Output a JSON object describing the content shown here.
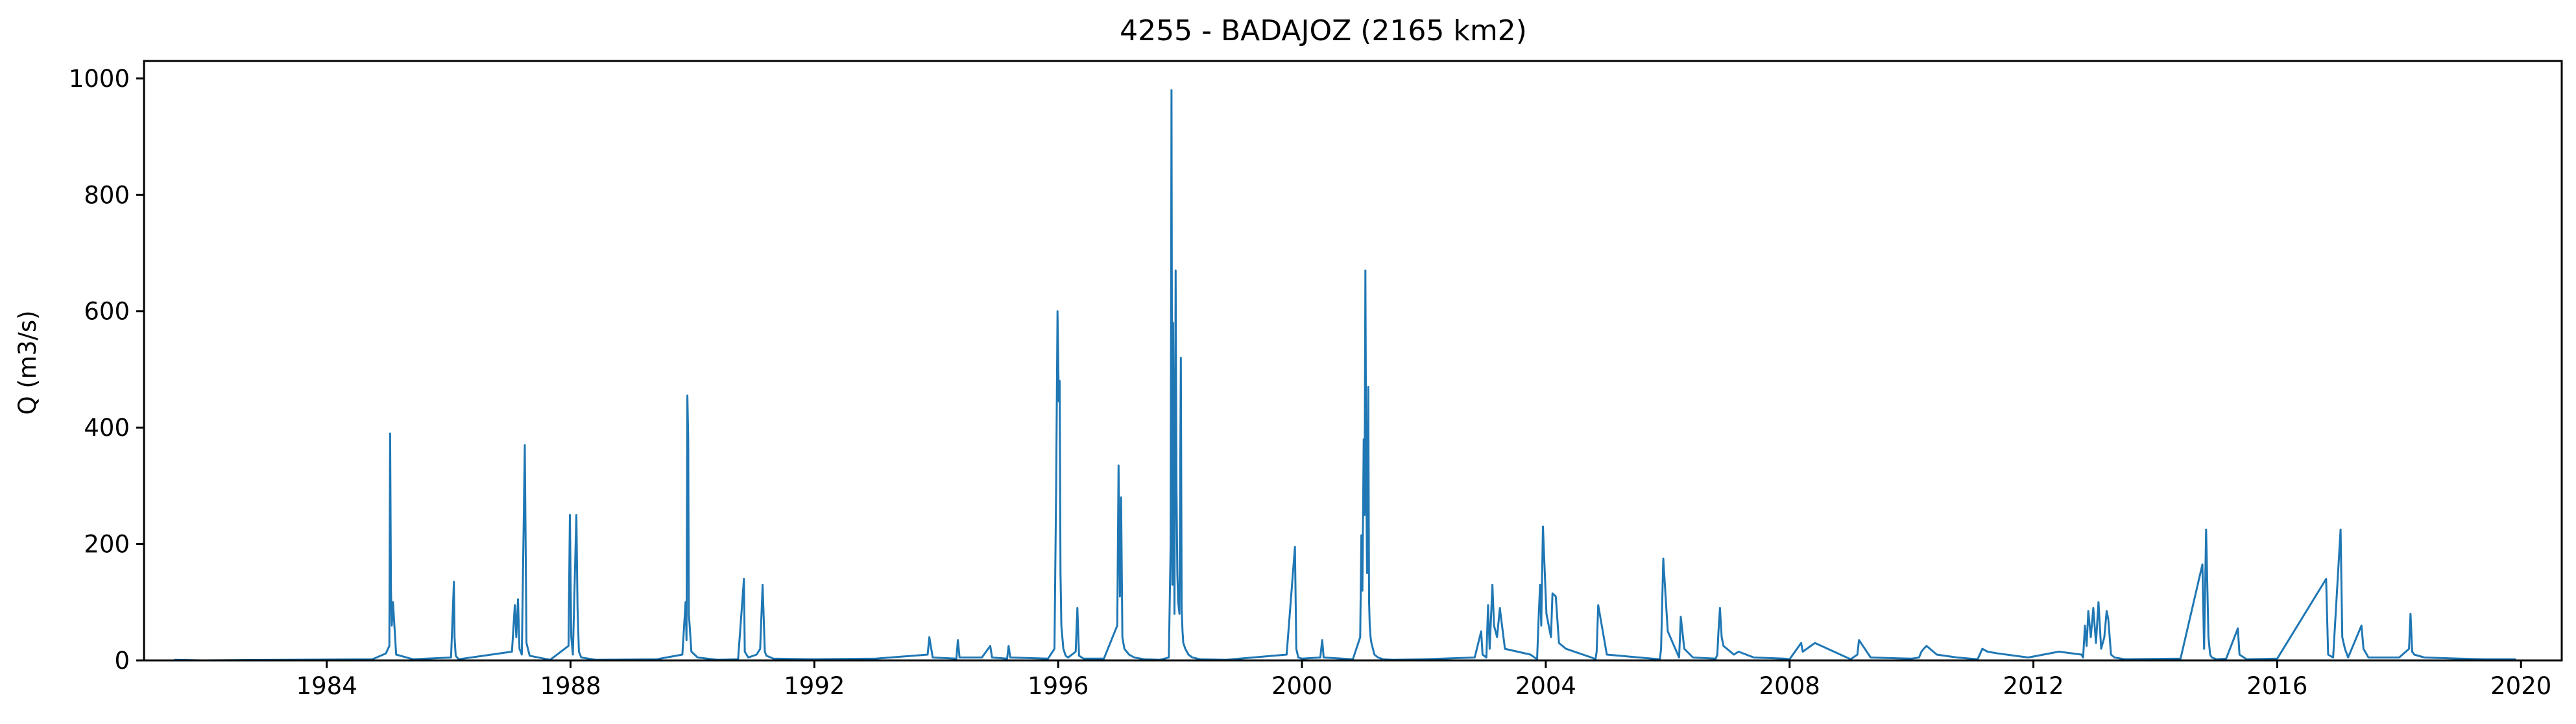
{
  "chart_data": {
    "type": "line",
    "title": "4255 - BADAJOZ (2165 km2)",
    "xlabel": "",
    "ylabel": "Q (m3/s)",
    "xlim": [
      "1981-01-01",
      "2020-09-01"
    ],
    "ylim": [
      0,
      1030
    ],
    "x_ticks": [
      "1984",
      "1988",
      "1992",
      "1996",
      "2000",
      "2004",
      "2008",
      "2012",
      "2016",
      "2020"
    ],
    "y_ticks": [
      0,
      200,
      400,
      600,
      800,
      1000
    ],
    "grid": false,
    "legend": "none",
    "line_color": "#1f77b4",
    "series": [
      {
        "x": [
          "1981-07-01",
          "1981-12-15",
          "1984-10-01",
          "1984-12-20",
          "1985-01-10",
          "1985-01-15",
          "1985-01-20",
          "1985-01-25",
          "1985-02-01",
          "1985-02-20",
          "1985-06-01",
          "1986-01-15",
          "1986-02-01",
          "1986-02-05",
          "1986-02-12",
          "1986-03-01",
          "1987-01-15",
          "1987-02-01",
          "1987-02-10",
          "1987-02-20",
          "1987-03-01",
          "1987-03-15",
          "1987-04-02",
          "1987-04-12",
          "1987-05-01",
          "1987-09-01",
          "1987-12-20",
          "1987-12-28",
          "1988-01-05",
          "1988-01-15",
          "1988-02-05",
          "1988-02-12",
          "1988-02-20",
          "1988-03-05",
          "1988-06-01",
          "1989-06-01",
          "1989-11-01",
          "1989-11-20",
          "1989-11-26",
          "1989-12-01",
          "1989-12-06",
          "1989-12-10",
          "1989-12-25",
          "1990-02-01",
          "1990-06-01",
          "1990-10-01",
          "1990-11-05",
          "1990-11-10",
          "1990-12-01",
          "1991-01-20",
          "1991-02-10",
          "1991-02-25",
          "1991-03-10",
          "1991-03-20",
          "1991-05-01",
          "1992-01-01",
          "1993-01-01",
          "1993-11-10",
          "1993-11-20",
          "1993-12-10",
          "1994-05-01",
          "1994-05-10",
          "1994-05-20",
          "1994-10-01",
          "1994-11-20",
          "1994-12-01",
          "1995-03-01",
          "1995-03-10",
          "1995-03-20",
          "1995-11-01",
          "1995-12-10",
          "1995-12-20",
          "1995-12-28",
          "1996-01-05",
          "1996-01-10",
          "1996-01-15",
          "1996-01-20",
          "1996-02-01",
          "1996-02-15",
          "1996-03-01",
          "1996-04-15",
          "1996-04-25",
          "1996-05-05",
          "1996-06-01",
          "1996-10-01",
          "1996-12-20",
          "1996-12-28",
          "1997-01-05",
          "1997-01-12",
          "1997-01-20",
          "1997-02-01",
          "1997-03-01",
          "1997-04-01",
          "1997-06-01",
          "1997-09-01",
          "1997-10-25",
          "1997-11-05",
          "1997-11-10",
          "1997-11-15",
          "1997-11-20",
          "1997-11-28",
          "1997-12-05",
          "1997-12-10",
          "1997-12-15",
          "1997-12-20",
          "1997-12-28",
          "1998-01-05",
          "1998-01-10",
          "1998-01-15",
          "1998-01-20",
          "1998-02-01",
          "1998-02-20",
          "1998-03-15",
          "1998-05-01",
          "1998-10-01",
          "1999-10-01",
          "1999-11-20",
          "1999-11-28",
          "1999-12-10",
          "2000-01-01",
          "2000-04-20",
          "2000-05-01",
          "2000-05-10",
          "2000-11-01",
          "2000-12-15",
          "2000-12-22",
          "2000-12-28",
          "2001-01-05",
          "2001-01-10",
          "2001-01-15",
          "2001-01-20",
          "2001-01-25",
          "2001-02-01",
          "2001-02-06",
          "2001-02-10",
          "2001-02-15",
          "2001-02-20",
          "2001-03-01",
          "2001-03-10",
          "2001-04-01",
          "2001-05-01",
          "2001-07-01",
          "2002-01-01",
          "2002-11-01",
          "2002-12-10",
          "2002-12-18",
          "2003-01-10",
          "2003-01-20",
          "2003-01-30",
          "2003-02-15",
          "2003-02-25",
          "2003-03-15",
          "2003-04-01",
          "2003-05-01",
          "2003-10-01",
          "2003-11-10",
          "2003-11-20",
          "2003-11-28",
          "2003-12-05",
          "2003-12-15",
          "2004-01-05",
          "2004-02-01",
          "2004-02-10",
          "2004-03-01",
          "2004-03-20",
          "2004-05-01",
          "2004-10-01",
          "2004-10-25",
          "2004-11-01",
          "2004-11-10",
          "2005-01-01",
          "2005-10-01",
          "2005-11-15",
          "2005-11-22",
          "2005-12-05",
          "2006-01-01",
          "2006-03-10",
          "2006-03-20",
          "2006-04-10",
          "2006-06-01",
          "2006-10-15",
          "2006-10-25",
          "2006-11-01",
          "2006-11-10",
          "2006-11-20",
          "2006-12-01",
          "2007-02-01",
          "2007-03-01",
          "2007-06-01",
          "2007-12-01",
          "2008-01-01",
          "2008-03-10",
          "2008-03-20",
          "2008-06-01",
          "2009-01-01",
          "2009-02-10",
          "2009-02-20",
          "2009-05-01",
          "2010-01-01",
          "2010-02-15",
          "2010-03-01",
          "2010-03-15",
          "2010-04-01",
          "2010-06-01",
          "2010-10-01",
          "2011-02-01",
          "2011-03-01",
          "2011-04-01",
          "2011-06-01",
          "2011-12-01",
          "2012-06-01",
          "2012-10-15",
          "2012-10-25",
          "2012-11-05",
          "2012-11-15",
          "2012-11-25",
          "2012-12-10",
          "2012-12-25",
          "2013-01-10",
          "2013-01-25",
          "2013-02-10",
          "2013-03-01",
          "2013-03-15",
          "2013-03-25",
          "2013-04-10",
          "2013-05-01",
          "2013-07-01",
          "2014-06-01",
          "2014-10-10",
          "2014-10-20",
          "2014-11-01",
          "2014-11-15",
          "2014-11-25",
          "2014-12-05",
          "2015-01-01",
          "2015-03-01",
          "2015-05-10",
          "2015-05-20",
          "2015-07-01",
          "2016-01-01",
          "2016-10-20",
          "2016-11-01",
          "2016-12-01",
          "2017-01-15",
          "2017-01-25",
          "2017-02-10",
          "2017-03-01",
          "2017-05-20",
          "2017-06-01",
          "2017-07-01",
          "2018-01-01",
          "2018-03-01",
          "2018-03-10",
          "2018-03-20",
          "2018-04-01",
          "2018-06-01",
          "2019-01-01",
          "2019-06-01",
          "2019-12-01"
        ],
        "y": [
          1,
          0,
          2,
          12,
          25,
          390,
          120,
          60,
          100,
          10,
          2,
          5,
          135,
          40,
          8,
          2,
          15,
          95,
          40,
          105,
          20,
          10,
          370,
          30,
          8,
          1,
          25,
          250,
          40,
          10,
          250,
          90,
          15,
          5,
          1,
          2,
          10,
          100,
          35,
          455,
          380,
          80,
          15,
          5,
          1,
          2,
          140,
          15,
          5,
          10,
          20,
          130,
          15,
          8,
          3,
          2,
          3,
          10,
          40,
          5,
          3,
          35,
          5,
          5,
          25,
          5,
          3,
          25,
          5,
          3,
          20,
          300,
          600,
          445,
          480,
          150,
          60,
          20,
          8,
          5,
          15,
          90,
          8,
          3,
          3,
          60,
          335,
          110,
          280,
          40,
          20,
          10,
          5,
          2,
          1,
          5,
          200,
          980,
          130,
          580,
          80,
          670,
          300,
          150,
          100,
          80,
          520,
          90,
          50,
          30,
          20,
          10,
          5,
          2,
          1,
          10,
          195,
          20,
          5,
          3,
          5,
          35,
          5,
          2,
          40,
          215,
          120,
          380,
          250,
          670,
          310,
          150,
          470,
          100,
          60,
          40,
          30,
          20,
          10,
          5,
          2,
          1,
          2,
          5,
          50,
          10,
          5,
          95,
          20,
          130,
          60,
          40,
          90,
          20,
          10,
          2,
          80,
          130,
          60,
          230,
          80,
          40,
          115,
          110,
          30,
          20,
          5,
          2,
          15,
          95,
          10,
          3,
          2,
          20,
          175,
          50,
          5,
          75,
          20,
          5,
          3,
          10,
          50,
          90,
          40,
          25,
          10,
          15,
          5,
          3,
          2,
          30,
          15,
          30,
          2,
          10,
          35,
          5,
          3,
          5,
          15,
          20,
          25,
          10,
          5,
          2,
          20,
          15,
          12,
          5,
          15,
          10,
          5,
          60,
          25,
          85,
          40,
          90,
          30,
          100,
          20,
          40,
          85,
          70,
          10,
          5,
          2,
          3,
          165,
          20,
          225,
          40,
          10,
          5,
          2,
          3,
          55,
          10,
          2,
          3,
          140,
          10,
          5,
          225,
          40,
          20,
          5,
          60,
          20,
          5,
          5,
          20,
          80,
          15,
          10,
          5,
          3,
          2,
          2
        ]
      }
    ]
  }
}
